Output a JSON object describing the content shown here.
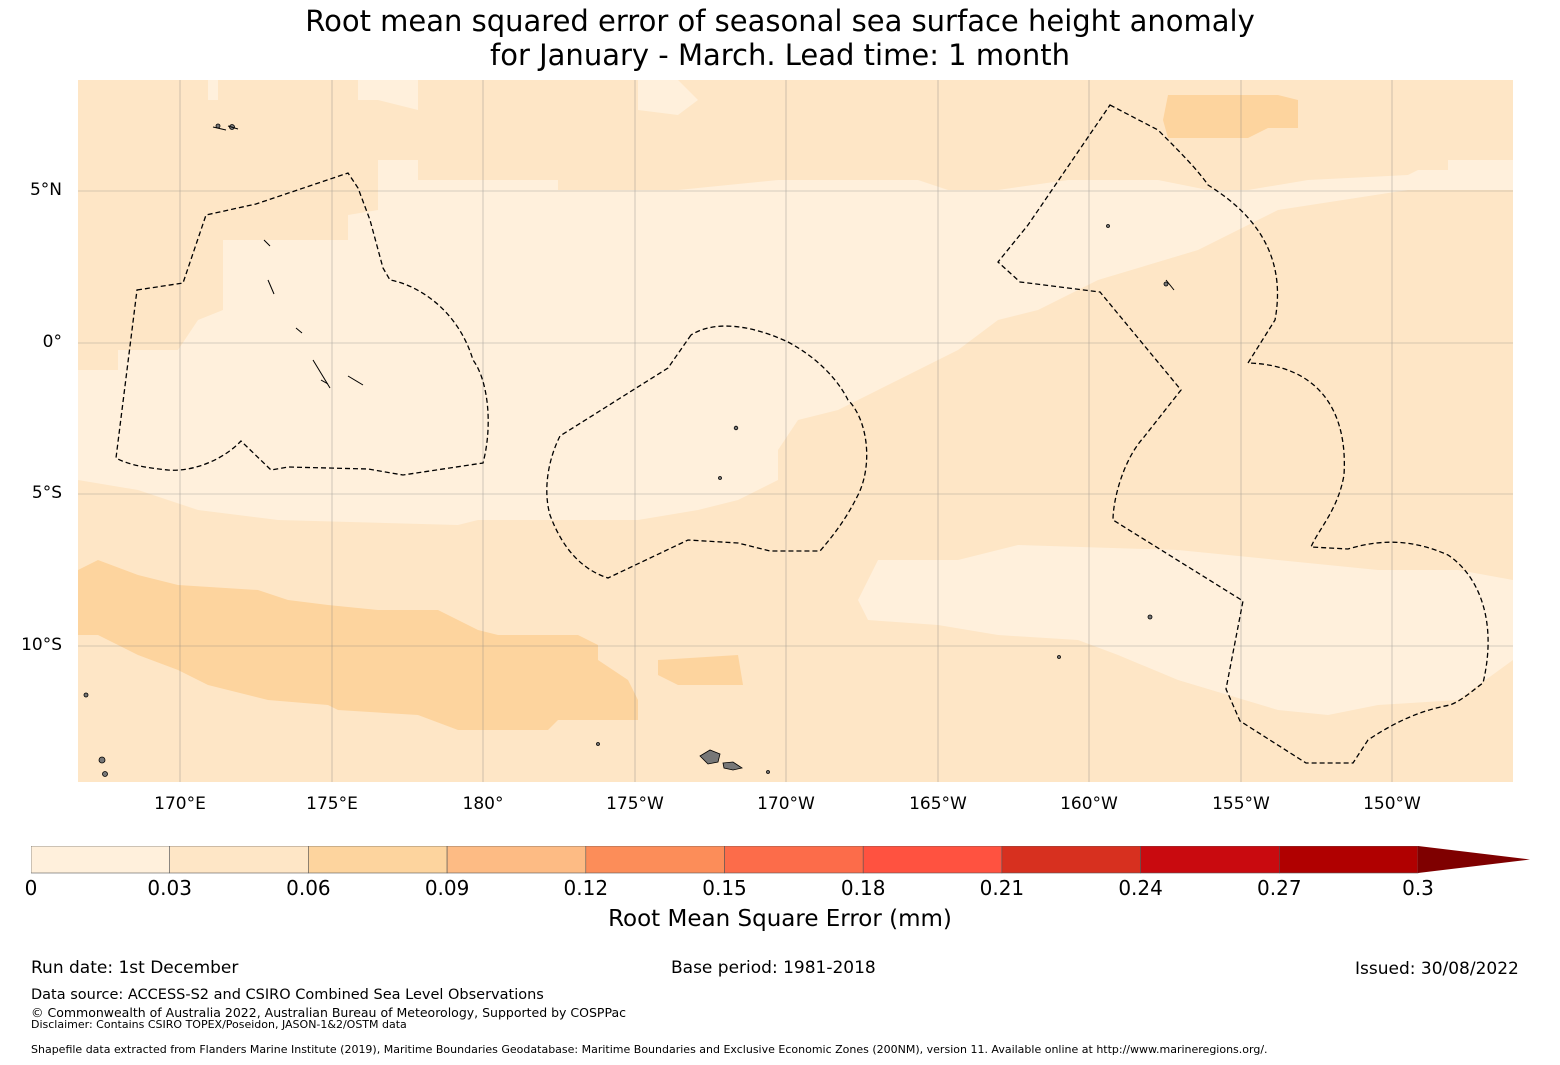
{
  "title_line1": "Root mean squared error of seasonal sea surface height anomaly",
  "title_line2": "for January - March. Lead time: 1 month",
  "map": {
    "lat_labels": [
      "5°N",
      "0°",
      "5°S",
      "10°S"
    ],
    "lon_labels": [
      "170°E",
      "175°E",
      "180°",
      "175°W",
      "170°W",
      "165°W",
      "160°W",
      "155°W",
      "150°W"
    ],
    "rmse_classes": [
      "0-0.03",
      "0.03-0.06",
      "0.06-0.09"
    ]
  },
  "colorbar": {
    "label": "Root Mean Square Error (mm)",
    "ticks": [
      "0",
      "0.03",
      "0.06",
      "0.09",
      "0.12",
      "0.15",
      "0.18",
      "0.21",
      "0.24",
      "0.27",
      "0.3"
    ],
    "colors": [
      "#fff0dc",
      "#fee6c6",
      "#fdd49e",
      "#fdbb84",
      "#fc8d59",
      "#fc6c4a",
      "#ff5240",
      "#d7301f",
      "#c90a0f",
      "#b00000",
      "#7f0000"
    ]
  },
  "footer": {
    "run_date": "Run date: 1st December",
    "base_period": "Base period: 1981-2018",
    "issued": "Issued: 30/08/2022",
    "data_source": "Data source: ACCESS-S2 and CSIRO Combined Sea Level Observations",
    "copyright": "© Commonwealth of Australia 2022, Australian Bureau of Meteorology, Supported by COSPPac",
    "disclaimer": "Disclaimer: Contains CSIRO TOPEX/Poseidon, JASON-1&2/OSTM data",
    "shapefile": "Shapefile data extracted from Flanders Marine Institute (2019), Maritime Boundaries Geodatabase: Maritime Boundaries and Exclusive Economic Zones (200NM), version 11. Available online at http://www.marineregions.org/."
  }
}
